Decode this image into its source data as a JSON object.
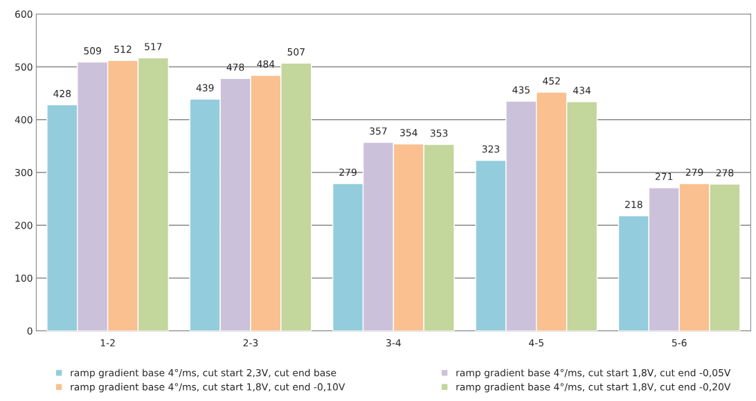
{
  "chart_data": {
    "type": "bar",
    "categories": [
      "1-2",
      "2-3",
      "3-4",
      "4-5",
      "5-6"
    ],
    "series": [
      {
        "name": "ramp gradient base 4°/ms, cut start 2,3V, cut end base",
        "color": "#93cddd",
        "values": [
          428,
          439,
          279,
          323,
          218
        ]
      },
      {
        "name": "ramp gradient base 4°/ms, cut start 1,8V, cut end -0,05V",
        "color": "#ccc1da",
        "values": [
          509,
          478,
          357,
          435,
          271
        ]
      },
      {
        "name": "ramp gradient base 4°/ms, cut start 1,8V, cut end -0,10V",
        "color": "#fac090",
        "values": [
          512,
          484,
          354,
          452,
          279
        ]
      },
      {
        "name": "ramp gradient base 4°/ms, cut start 1,8V, cut end -0,20V",
        "color": "#c3d69b",
        "values": [
          517,
          507,
          353,
          434,
          278
        ]
      }
    ],
    "ylim": [
      0,
      600
    ],
    "yticks": [
      0,
      100,
      200,
      300,
      400,
      500,
      600
    ],
    "grid": "y",
    "legend": "bottom",
    "data_labels": true
  }
}
